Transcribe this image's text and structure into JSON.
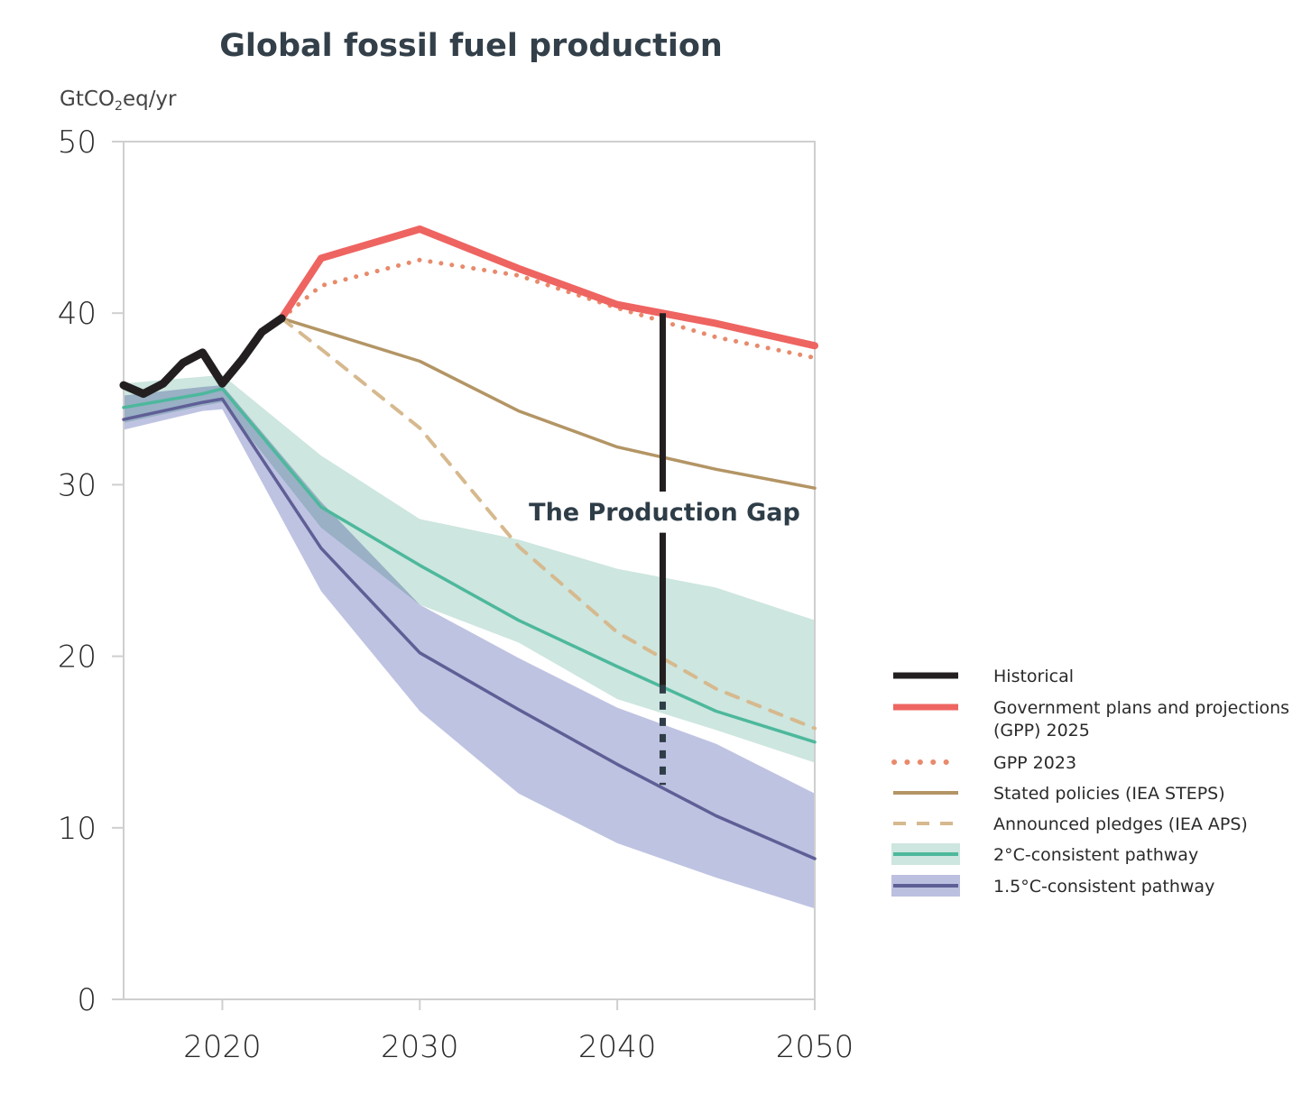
{
  "chart_data": {
    "type": "line",
    "title": "Global fossil fuel production",
    "ylabel": "GtCO₂eq/yr",
    "ylabel_base": "GtCO",
    "ylabel_sub": "2",
    "ylabel_suffix": "eq/yr",
    "xlabel": "",
    "xlim": [
      2015,
      2050
    ],
    "ylim": [
      0,
      50
    ],
    "xticks": [
      2020,
      2030,
      2040,
      2050
    ],
    "yticks": [
      0,
      10,
      20,
      30,
      40,
      50
    ],
    "grid": false,
    "legend_position": "right",
    "annotation": {
      "text": "The Production Gap",
      "year": 2042.3,
      "solid_from": 40.0,
      "solid_to": 18.3,
      "dotted_to": 12.5
    },
    "series": [
      {
        "name": "Historical",
        "style": "solid-thick",
        "color": "#231f20",
        "x": [
          2015,
          2016,
          2017,
          2018,
          2019,
          2020,
          2021,
          2022,
          2023
        ],
        "values": [
          35.8,
          35.3,
          35.9,
          37.1,
          37.7,
          35.9,
          37.3,
          38.9,
          39.7
        ]
      },
      {
        "name": "Government plans and projections (GPP) 2025",
        "legend_lines": [
          "Government plans and projections",
          "(GPP) 2025"
        ],
        "style": "solid-thick",
        "color": "#ee6461",
        "x": [
          2023,
          2025,
          2030,
          2035,
          2040,
          2045,
          2050
        ],
        "values": [
          39.7,
          43.2,
          44.9,
          42.6,
          40.5,
          39.4,
          38.1
        ]
      },
      {
        "name": "GPP 2023",
        "style": "dotted",
        "color": "#e88a6c",
        "x": [
          2023,
          2025,
          2030,
          2035,
          2040,
          2045,
          2050
        ],
        "values": [
          39.7,
          41.6,
          43.1,
          42.2,
          40.3,
          38.6,
          37.4
        ]
      },
      {
        "name": "Stated policies (IEA STEPS)",
        "style": "solid",
        "color": "#b39565",
        "x": [
          2023,
          2030,
          2035,
          2040,
          2045,
          2050
        ],
        "values": [
          39.7,
          37.2,
          34.3,
          32.2,
          30.9,
          29.8
        ]
      },
      {
        "name": "Announced pledges (IEA APS)",
        "style": "dashed",
        "color": "#d6b98e",
        "x": [
          2023,
          2025,
          2030,
          2035,
          2040,
          2045,
          2050
        ],
        "values": [
          39.7,
          37.9,
          33.3,
          26.4,
          21.4,
          18.1,
          15.8
        ]
      },
      {
        "name": "2°C-consistent pathway",
        "style": "band-median",
        "color": "#4db89c",
        "band_color": "#cde6df",
        "x": [
          2015,
          2019,
          2020,
          2025,
          2030,
          2035,
          2040,
          2045,
          2050
        ],
        "values": [
          34.5,
          35.3,
          35.6,
          28.7,
          25.3,
          22.1,
          19.4,
          16.8,
          15.0
        ],
        "band_upper": [
          35.9,
          36.3,
          36.4,
          31.7,
          28.0,
          26.8,
          25.1,
          24.0,
          22.1
        ],
        "band_lower": [
          33.6,
          34.6,
          34.8,
          27.5,
          23.0,
          20.8,
          17.5,
          15.7,
          13.8
        ]
      },
      {
        "name": "1.5°C-consistent pathway",
        "style": "band-median",
        "color": "#5f5f96",
        "band_color": "#bcc0e0",
        "x": [
          2015,
          2019,
          2020,
          2025,
          2030,
          2035,
          2040,
          2045,
          2050
        ],
        "values": [
          33.8,
          34.8,
          35.0,
          26.3,
          20.2,
          16.9,
          13.7,
          10.7,
          8.2
        ],
        "band_upper": [
          35.2,
          35.7,
          35.8,
          29.0,
          23.0,
          19.9,
          17.0,
          14.9,
          12.0
        ],
        "band_lower": [
          33.2,
          34.3,
          34.4,
          23.8,
          16.8,
          12.0,
          9.1,
          7.1,
          5.3
        ]
      }
    ]
  }
}
